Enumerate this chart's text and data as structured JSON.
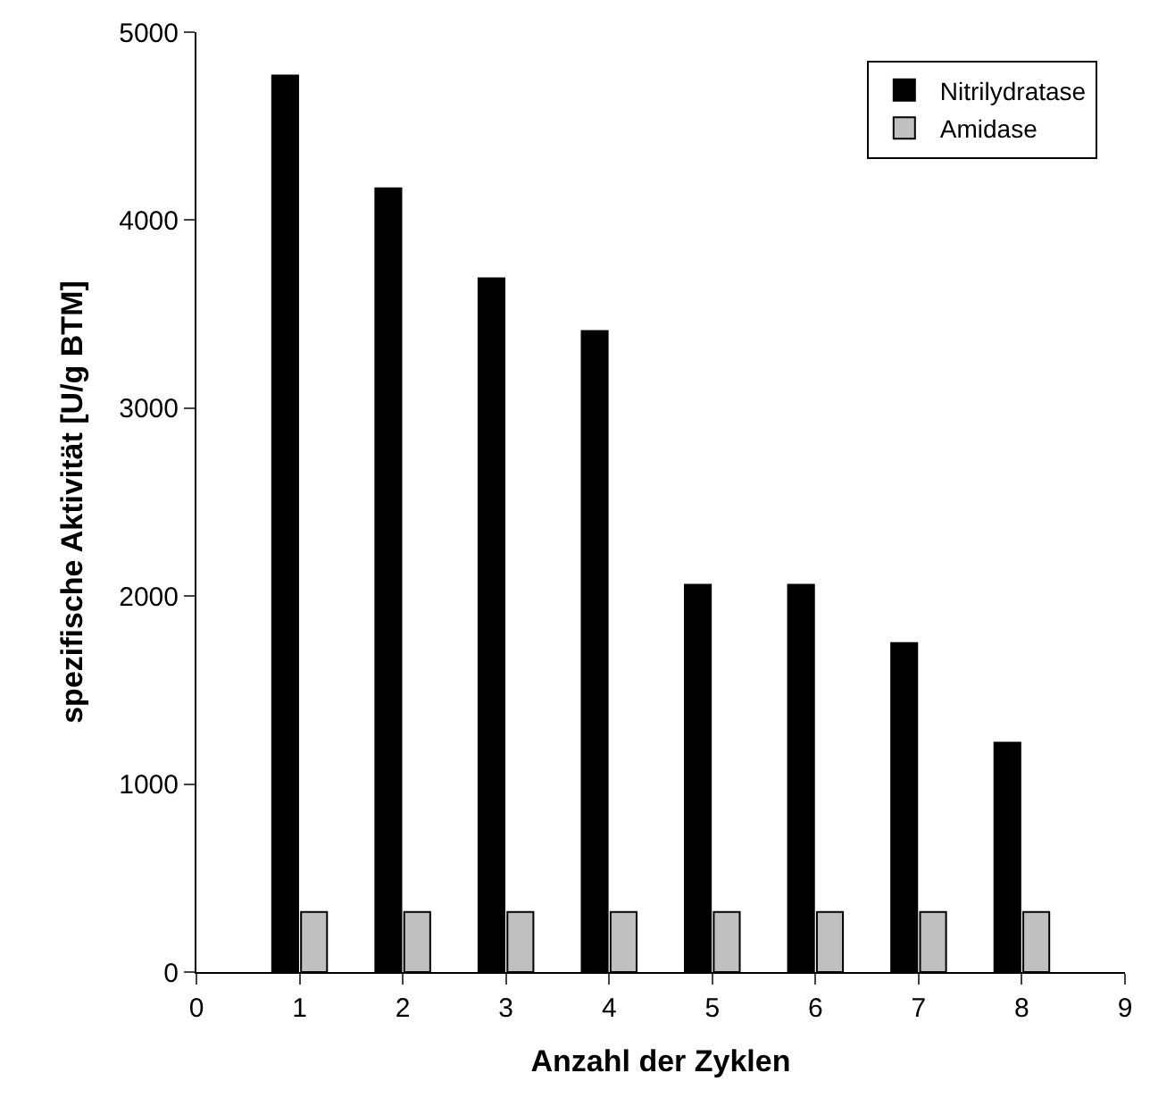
{
  "chart_data": {
    "type": "bar",
    "xlabel": "Anzahl der Zyklen",
    "ylabel": "spezifische Aktivität [U/g BTM]",
    "x": [
      1,
      2,
      3,
      4,
      5,
      6,
      7,
      8
    ],
    "series": [
      {
        "name": "Nitrilydratase",
        "color": "#000000",
        "values": [
          4770,
          4170,
          3690,
          3410,
          2060,
          2060,
          1750,
          1220
        ]
      },
      {
        "name": "Amidase",
        "color": "#c0c0c0",
        "values": [
          320,
          320,
          320,
          320,
          320,
          320,
          320,
          320
        ]
      }
    ],
    "xlim": [
      0,
      9
    ],
    "xticks": [
      0,
      1,
      2,
      3,
      4,
      5,
      6,
      7,
      8,
      9
    ],
    "ylim": [
      0,
      5000
    ],
    "yticks": [
      0,
      1000,
      2000,
      3000,
      4000,
      5000
    ],
    "legend": "top right"
  }
}
